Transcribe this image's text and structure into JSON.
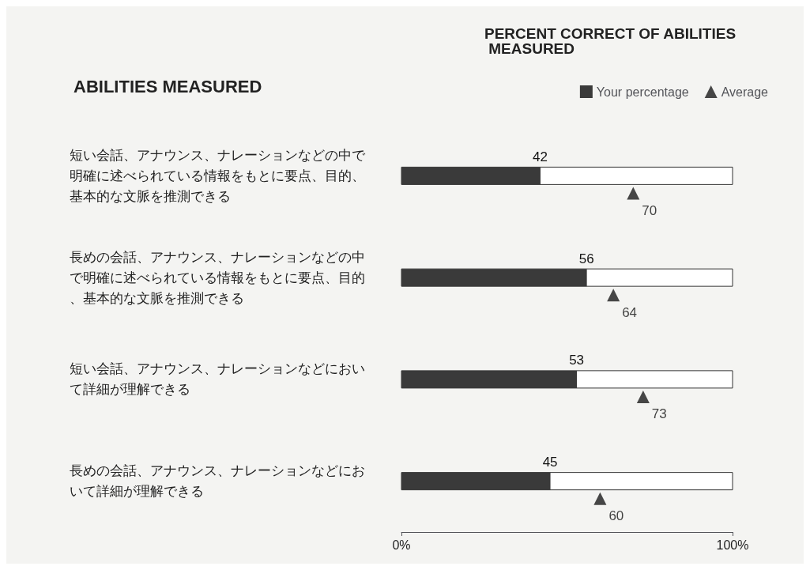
{
  "chart_data": {
    "type": "bar",
    "orientation": "horizontal",
    "title": "PERCENT CORRECT OF ABILITIES MEASURED",
    "ylabel": "ABILITIES MEASURED",
    "categories": [
      "短い会話、アナウンス、ナレーションなどの中で明確に述べられている情報をもとに要点、目的、基本的な文脈を推測できる",
      "長めの会話、アナウンス、ナレーションなどの中で明確に述べられている情報をもとに要点、目的、基本的な文脈を推測できる",
      "短い会話、アナウンス、ナレーションなどにおいて詳細が理解できる",
      "長めの会話、アナウンス、ナレーションなどにおいて詳細が理解できる"
    ],
    "series": [
      {
        "name": "Your percentage",
        "color": "#3a3a3a",
        "values": [
          42,
          56,
          53,
          45
        ]
      },
      {
        "name": "Average",
        "type": "scatter",
        "color": "#1a1a1a",
        "values": [
          70,
          64,
          73,
          60
        ]
      }
    ],
    "data_labels": true,
    "marker": "triangle",
    "xlim": [
      0,
      100
    ],
    "xticks": [
      {
        "value": 0,
        "label": "0%"
      },
      {
        "value": 100,
        "label": "100%"
      }
    ],
    "grid": false,
    "legend": "top right"
  }
}
